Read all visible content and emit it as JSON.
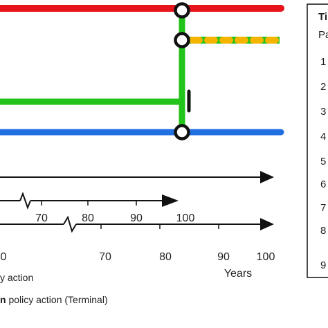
{
  "colors": {
    "red": "#e8141c",
    "green": "#22c31a",
    "orange": "#f4b400",
    "blue": "#1f6fe0",
    "black": "#111111"
  },
  "axis1": {
    "ticks": [
      "70",
      "80",
      "90",
      "100"
    ]
  },
  "axis2": {
    "ticks": [
      "0",
      "70",
      "80",
      "90",
      "100"
    ],
    "unit_label": "Years"
  },
  "legend": {
    "row1": "y action",
    "row2_bold": "n",
    "row2_text": " policy action (Terminal)"
  },
  "table": {
    "header": "Ti",
    "subheader": "Pa",
    "rows": [
      "1",
      "2",
      "3",
      "4",
      "5",
      "6",
      "7",
      "8",
      "9"
    ]
  }
}
